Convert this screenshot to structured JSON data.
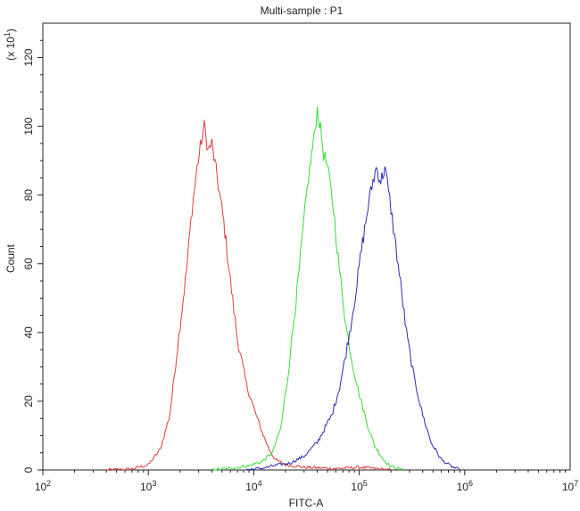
{
  "chart_data": {
    "type": "line",
    "title": "Multi-sample : P1",
    "xlabel": "FITC-A",
    "ylabel": "Count",
    "y_multiplier_label": "(x 10",
    "y_multiplier_exp": "1",
    "y_multiplier_close": ")",
    "xscale": "log",
    "xlim": [
      100,
      10000000
    ],
    "ylim": [
      0,
      130
    ],
    "x_ticks": [
      {
        "value": 100,
        "base": "10",
        "exp": "2"
      },
      {
        "value": 1000,
        "base": "10",
        "exp": "3"
      },
      {
        "value": 10000,
        "base": "10",
        "exp": "4"
      },
      {
        "value": 100000,
        "base": "10",
        "exp": "5"
      },
      {
        "value": 1000000,
        "base": "10",
        "exp": "6"
      },
      {
        "value": 10000000,
        "base": "10",
        "exp": "7"
      }
    ],
    "y_ticks": [
      "0",
      "20",
      "40",
      "60",
      "80",
      "100",
      "120"
    ],
    "grid": false,
    "legend": "none",
    "series": [
      {
        "color": "#e23b3b",
        "points": [
          [
            400,
            0
          ],
          [
            700,
            0.3
          ],
          [
            1000,
            1.5
          ],
          [
            1300,
            6
          ],
          [
            1600,
            16
          ],
          [
            2000,
            42
          ],
          [
            2300,
            58
          ],
          [
            2600,
            76
          ],
          [
            2900,
            88
          ],
          [
            3200,
            96
          ],
          [
            3400,
            100
          ],
          [
            3700,
            93
          ],
          [
            4000,
            95
          ],
          [
            4500,
            85
          ],
          [
            5200,
            72
          ],
          [
            6000,
            55
          ],
          [
            7000,
            38
          ],
          [
            8500,
            25
          ],
          [
            10000,
            18
          ],
          [
            12000,
            11
          ],
          [
            14000,
            6
          ],
          [
            16000,
            3
          ],
          [
            20000,
            1.5
          ],
          [
            30000,
            0.8
          ],
          [
            60000,
            0.4
          ],
          [
            100000,
            0.8
          ],
          [
            200000,
            0
          ]
        ]
      },
      {
        "color": "#33dd33",
        "points": [
          [
            4000,
            0
          ],
          [
            6000,
            0.5
          ],
          [
            9000,
            1.2
          ],
          [
            12000,
            2.5
          ],
          [
            15000,
            5
          ],
          [
            18000,
            12
          ],
          [
            21000,
            27
          ],
          [
            24000,
            44
          ],
          [
            27000,
            58
          ],
          [
            30000,
            73
          ],
          [
            33000,
            85
          ],
          [
            37000,
            96
          ],
          [
            40000,
            105
          ],
          [
            43000,
            99
          ],
          [
            46000,
            92
          ],
          [
            50000,
            88
          ],
          [
            57000,
            76
          ],
          [
            65000,
            58
          ],
          [
            75000,
            42
          ],
          [
            85000,
            32
          ],
          [
            100000,
            22
          ],
          [
            120000,
            13
          ],
          [
            140000,
            7
          ],
          [
            170000,
            3
          ],
          [
            200000,
            1
          ],
          [
            260000,
            0
          ]
        ]
      },
      {
        "color": "#2b2bb5",
        "points": [
          [
            8000,
            0
          ],
          [
            12000,
            0.5
          ],
          [
            17000,
            1.5
          ],
          [
            22000,
            2
          ],
          [
            30000,
            4
          ],
          [
            40000,
            8
          ],
          [
            55000,
            16
          ],
          [
            65000,
            24
          ],
          [
            75000,
            34
          ],
          [
            85000,
            44
          ],
          [
            95000,
            54
          ],
          [
            105000,
            64
          ],
          [
            115000,
            72
          ],
          [
            125000,
            79
          ],
          [
            135000,
            84
          ],
          [
            145000,
            88
          ],
          [
            160000,
            84
          ],
          [
            175000,
            88
          ],
          [
            200000,
            76
          ],
          [
            240000,
            57
          ],
          [
            280000,
            40
          ],
          [
            330000,
            27
          ],
          [
            400000,
            16
          ],
          [
            480000,
            8
          ],
          [
            600000,
            3
          ],
          [
            750000,
            1
          ],
          [
            900000,
            0
          ]
        ]
      }
    ]
  }
}
